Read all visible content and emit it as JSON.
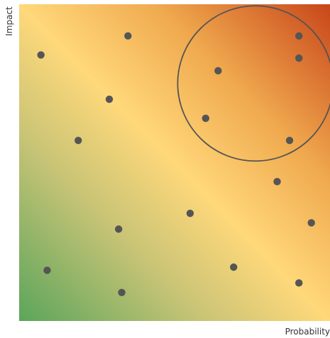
{
  "chart_data": {
    "type": "scatter",
    "title": "",
    "xlabel": "Probability",
    "ylabel": "Impact",
    "xlim": [
      0,
      100
    ],
    "ylim": [
      0,
      100
    ],
    "grid": false,
    "legend": "none",
    "background_gradient": {
      "direction": "bottom-left to top-right",
      "stops": [
        "#5ba55b",
        "#c9c476",
        "#ffd87a",
        "#f0a94e",
        "#c8461a"
      ]
    },
    "point_color": "#555555",
    "highlight_circle": {
      "center": {
        "x": 76,
        "y": 75
      },
      "radius_x": 25,
      "stroke": "#555555"
    },
    "points": [
      {
        "x": 7,
        "y": 84
      },
      {
        "x": 35,
        "y": 90
      },
      {
        "x": 29,
        "y": 70
      },
      {
        "x": 19,
        "y": 57
      },
      {
        "x": 64,
        "y": 79
      },
      {
        "x": 90,
        "y": 90
      },
      {
        "x": 90,
        "y": 83
      },
      {
        "x": 60,
        "y": 64
      },
      {
        "x": 87,
        "y": 57
      },
      {
        "x": 83,
        "y": 44
      },
      {
        "x": 55,
        "y": 34
      },
      {
        "x": 32,
        "y": 29
      },
      {
        "x": 94,
        "y": 31
      },
      {
        "x": 9,
        "y": 16
      },
      {
        "x": 69,
        "y": 17
      },
      {
        "x": 33,
        "y": 9
      },
      {
        "x": 90,
        "y": 12
      }
    ]
  }
}
